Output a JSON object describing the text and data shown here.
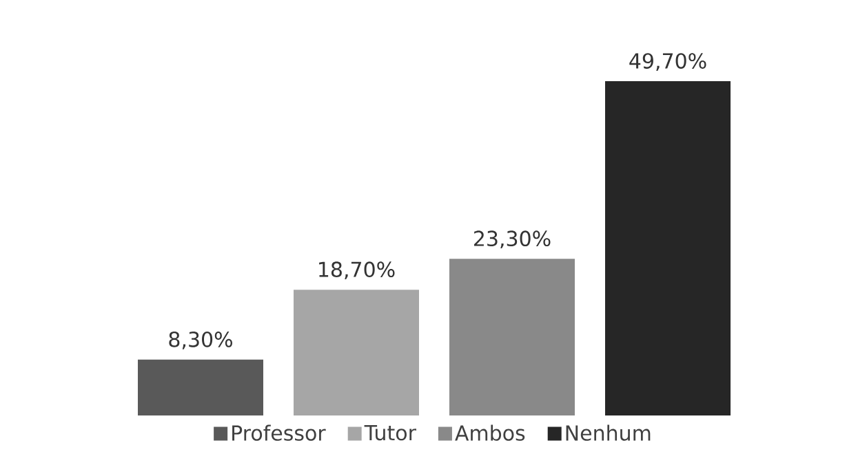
{
  "chart_data": {
    "type": "bar",
    "categories": [
      null
    ],
    "series": [
      {
        "name": "Professor",
        "color": "#595959",
        "values": [
          8.3
        ],
        "value_labels": [
          "8,30%"
        ]
      },
      {
        "name": "Tutor",
        "color": "#a6a6a6",
        "values": [
          18.7
        ],
        "value_labels": [
          "18,70%"
        ]
      },
      {
        "name": "Ambos",
        "color": "#898989",
        "values": [
          23.3
        ],
        "value_labels": [
          "23,30%"
        ]
      },
      {
        "name": "Nenhum",
        "color": "#262626",
        "values": [
          49.7
        ],
        "value_labels": [
          "49,70%"
        ]
      }
    ],
    "legend": "bottom"
  }
}
